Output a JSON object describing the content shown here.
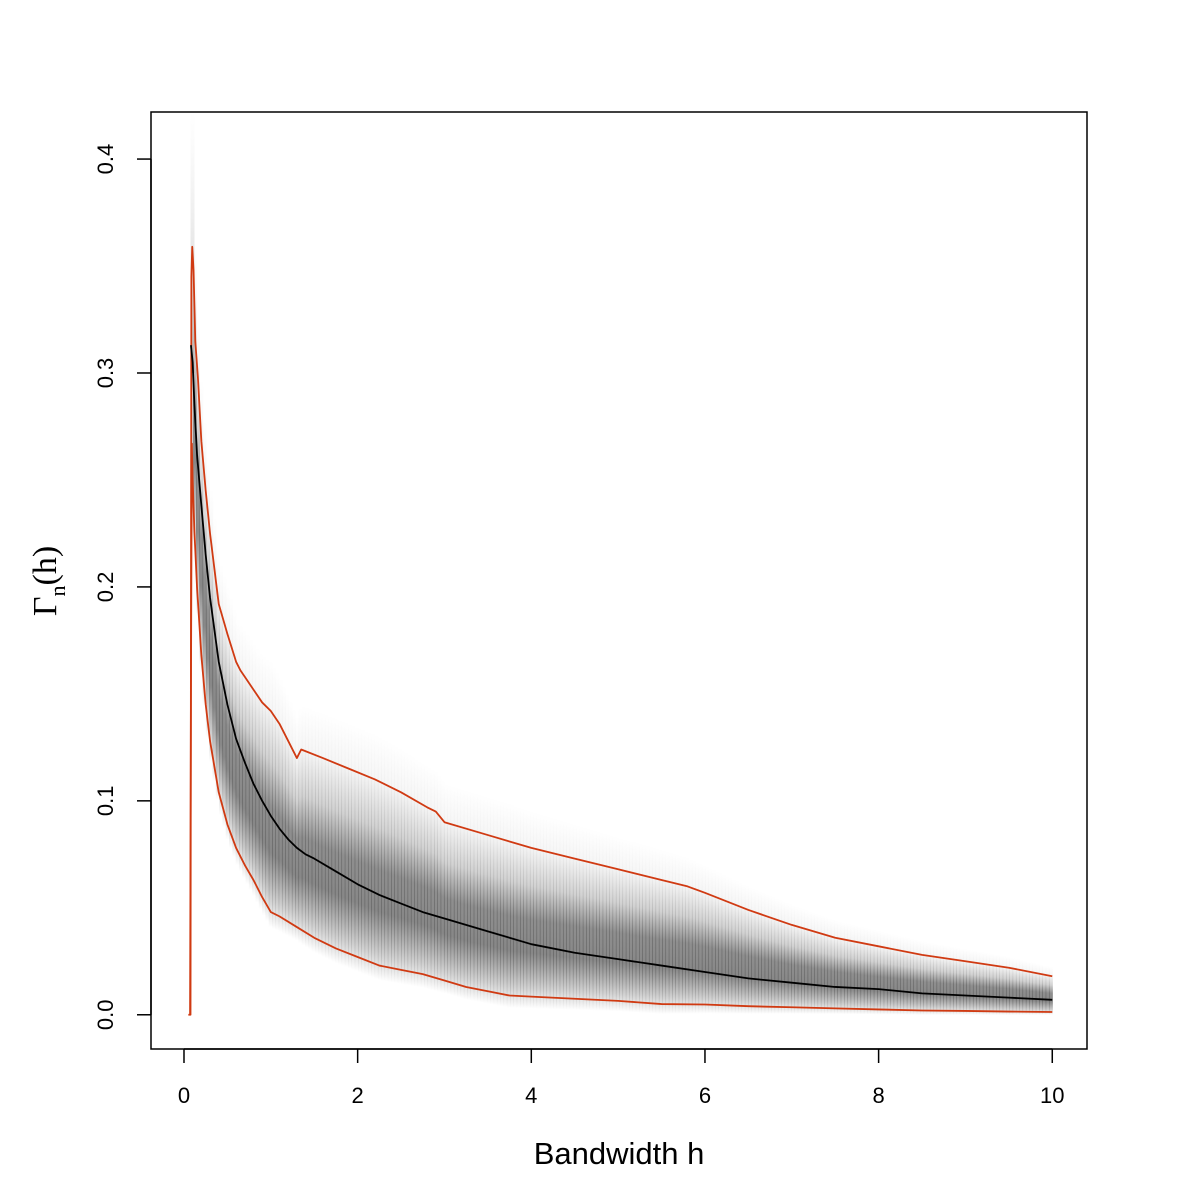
{
  "chart_data": {
    "type": "line",
    "title": "",
    "xlabel": "Bandwidth h",
    "ylabel": {
      "main": "Γ",
      "sub": "n",
      "suffix": "(h)"
    },
    "xlim": [
      -0.38,
      10.4
    ],
    "ylim": [
      -0.016,
      0.422
    ],
    "x_ticks": [
      0,
      2,
      4,
      6,
      8,
      10
    ],
    "x_tick_labels": [
      "0",
      "2",
      "4",
      "6",
      "8",
      "10"
    ],
    "y_ticks": [
      0.0,
      0.1,
      0.2,
      0.3,
      0.4
    ],
    "y_tick_labels": [
      "0.0",
      "0.1",
      "0.2",
      "0.3",
      "0.4"
    ],
    "grid": false,
    "legend": "none",
    "colors": {
      "median": "#000000",
      "bounds": "#d03a12",
      "density": "#4a4a4a"
    },
    "series": [
      {
        "role": "median",
        "x": [
          0.08,
          0.1,
          0.12,
          0.15,
          0.2,
          0.25,
          0.3,
          0.4,
          0.5,
          0.6,
          0.7,
          0.8,
          0.9,
          1.0,
          1.1,
          1.2,
          1.3,
          1.4,
          1.5,
          1.75,
          2.0,
          2.25,
          2.5,
          2.75,
          3.0,
          3.5,
          4.0,
          4.5,
          5.0,
          5.5,
          6.0,
          6.5,
          7.0,
          7.5,
          8.0,
          8.5,
          9.0,
          9.5,
          10.0
        ],
        "y": [
          0.313,
          0.305,
          0.285,
          0.262,
          0.238,
          0.215,
          0.195,
          0.165,
          0.145,
          0.129,
          0.118,
          0.108,
          0.1,
          0.093,
          0.087,
          0.082,
          0.078,
          0.075,
          0.073,
          0.067,
          0.061,
          0.056,
          0.052,
          0.048,
          0.045,
          0.039,
          0.033,
          0.029,
          0.026,
          0.023,
          0.02,
          0.017,
          0.015,
          0.013,
          0.012,
          0.01,
          0.009,
          0.008,
          0.007
        ]
      },
      {
        "role": "upper-bound",
        "x": [
          0.05,
          0.065,
          0.075,
          0.085,
          0.095,
          0.11,
          0.13,
          0.16,
          0.2,
          0.25,
          0.3,
          0.4,
          0.5,
          0.6,
          0.65,
          0.7,
          0.8,
          0.9,
          1.0,
          1.1,
          1.2,
          1.3,
          1.35,
          1.6,
          1.9,
          2.2,
          2.5,
          2.8,
          2.9,
          3.0,
          3.5,
          4.0,
          4.5,
          5.0,
          5.5,
          5.8,
          6.0,
          6.5,
          7.0,
          7.5,
          8.0,
          8.5,
          9.0,
          9.5,
          10.0
        ],
        "y": [
          0.0,
          0.0,
          0.0,
          0.345,
          0.359,
          0.348,
          0.315,
          0.298,
          0.268,
          0.245,
          0.225,
          0.192,
          0.178,
          0.165,
          0.161,
          0.158,
          0.152,
          0.146,
          0.142,
          0.136,
          0.128,
          0.12,
          0.124,
          0.12,
          0.115,
          0.11,
          0.104,
          0.097,
          0.095,
          0.09,
          0.084,
          0.078,
          0.073,
          0.068,
          0.063,
          0.06,
          0.057,
          0.049,
          0.042,
          0.036,
          0.032,
          0.028,
          0.025,
          0.022,
          0.018
        ]
      },
      {
        "role": "lower-bound",
        "x": [
          0.07,
          0.08,
          0.09,
          0.1,
          0.12,
          0.15,
          0.2,
          0.25,
          0.3,
          0.4,
          0.5,
          0.6,
          0.7,
          0.8,
          0.9,
          1.0,
          1.1,
          1.3,
          1.5,
          1.75,
          2.0,
          2.25,
          2.5,
          2.75,
          3.0,
          3.25,
          3.5,
          3.75,
          4.0,
          4.5,
          5.0,
          5.5,
          6.0,
          6.5,
          7.0,
          7.5,
          8.0,
          8.5,
          9.0,
          9.5,
          10.0
        ],
        "y": [
          0.0,
          0.15,
          0.267,
          0.25,
          0.226,
          0.2,
          0.168,
          0.145,
          0.128,
          0.104,
          0.089,
          0.078,
          0.07,
          0.063,
          0.055,
          0.048,
          0.046,
          0.041,
          0.036,
          0.031,
          0.027,
          0.023,
          0.021,
          0.019,
          0.016,
          0.013,
          0.011,
          0.009,
          0.0085,
          0.0075,
          0.0065,
          0.005,
          0.0048,
          0.004,
          0.0035,
          0.003,
          0.0025,
          0.002,
          0.0018,
          0.0015,
          0.0013
        ]
      }
    ]
  }
}
